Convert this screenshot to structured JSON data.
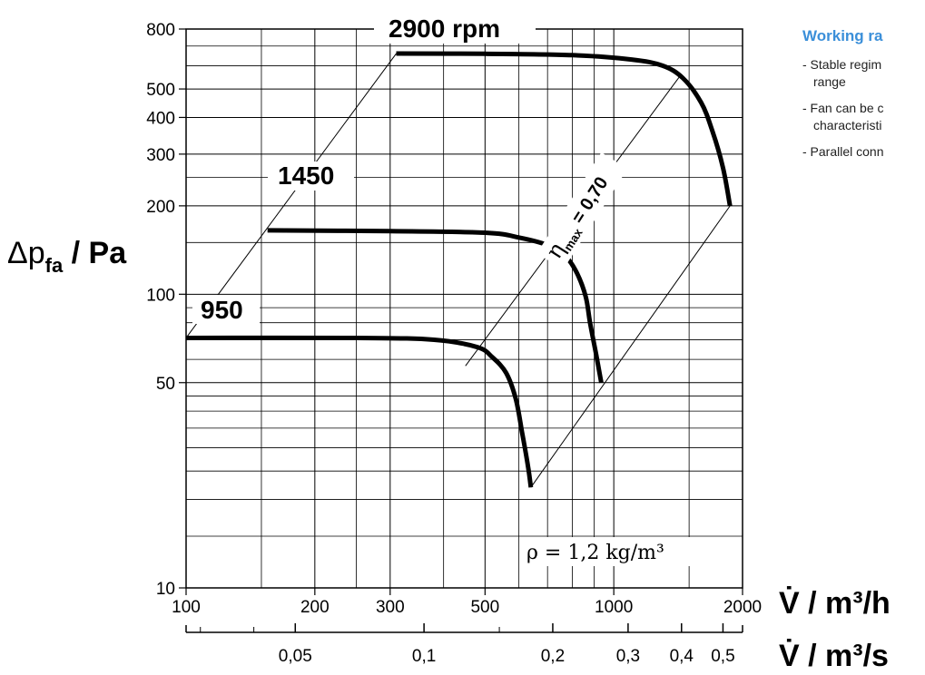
{
  "chart_data": {
    "type": "line",
    "x_scale": "log",
    "y_scale": "log",
    "xlim": [
      100,
      2000
    ],
    "ylim": [
      10,
      800
    ],
    "x_ticks": [
      {
        "v": 100,
        "label": "100"
      },
      {
        "v": 200,
        "label": "200"
      },
      {
        "v": 300,
        "label": "300"
      },
      {
        "v": 500,
        "label": "500"
      },
      {
        "v": 1000,
        "label": "1000"
      },
      {
        "v": 2000,
        "label": "2000"
      }
    ],
    "y_ticks": [
      {
        "v": 10,
        "label": "10"
      },
      {
        "v": 50,
        "label": "50"
      },
      {
        "v": 100,
        "label": "100"
      },
      {
        "v": 200,
        "label": "200"
      },
      {
        "v": 300,
        "label": "300"
      },
      {
        "v": 400,
        "label": "400"
      },
      {
        "v": 500,
        "label": "500"
      },
      {
        "v": 800,
        "label": "800"
      }
    ],
    "x_minor_lines": [
      150,
      250,
      400,
      600,
      700,
      800,
      900,
      1500
    ],
    "y_minor_lines": [
      15,
      20,
      25,
      30,
      35,
      40,
      45,
      60,
      70,
      80,
      90,
      150,
      250,
      600,
      700
    ],
    "x2_ticks": [
      {
        "v": 0.05,
        "label": "0,05"
      },
      {
        "v": 0.1,
        "label": "0,1"
      },
      {
        "v": 0.2,
        "label": "0,2"
      },
      {
        "v": 0.3,
        "label": "0,3"
      },
      {
        "v": 0.4,
        "label": "0,4"
      },
      {
        "v": 0.5,
        "label": "0,5"
      }
    ],
    "x2_minor": [
      0.03,
      0.04,
      0.15
    ],
    "series": [
      {
        "name": "2900 rpm",
        "points": [
          [
            310,
            660
          ],
          [
            500,
            659
          ],
          [
            800,
            652
          ],
          [
            1100,
            630
          ],
          [
            1300,
            600
          ],
          [
            1450,
            545
          ],
          [
            1600,
            450
          ],
          [
            1700,
            360
          ],
          [
            1800,
            270
          ],
          [
            1870,
            200
          ]
        ]
      },
      {
        "name": "1450",
        "points": [
          [
            155,
            165
          ],
          [
            300,
            164
          ],
          [
            500,
            162
          ],
          [
            600,
            156
          ],
          [
            700,
            147
          ],
          [
            770,
            135
          ],
          [
            820,
            118
          ],
          [
            860,
            98
          ],
          [
            880,
            80
          ],
          [
            910,
            62
          ],
          [
            935,
            50
          ]
        ]
      },
      {
        "name": "950",
        "points": [
          [
            100,
            71
          ],
          [
            250,
            71
          ],
          [
            380,
            70
          ],
          [
            480,
            66
          ],
          [
            520,
            61
          ],
          [
            560,
            54
          ],
          [
            590,
            44
          ],
          [
            610,
            34
          ],
          [
            630,
            26
          ],
          [
            640,
            22
          ]
        ]
      }
    ],
    "guide_lines": [
      [
        [
          100,
          71
        ],
        [
          310,
          660
        ]
      ],
      [
        [
          640,
          22
        ],
        [
          1870,
          200
        ]
      ],
      [
        [
          450,
          57
        ],
        [
          1430,
          555
        ]
      ]
    ],
    "annotations": {
      "label_2900": "2900 rpm",
      "label_1450": "1450",
      "label_950": "950",
      "eta_symbol": "η",
      "eta_sub": "max",
      "eta_value": " = 0,70",
      "rho": "ρ = 1,2 kg/m³"
    },
    "ylabel": {
      "prefix": "Δp",
      "sub": "fa",
      "suffix": " / Pa"
    },
    "xlabel": "V̇ / m³/h",
    "x2label": "V̇ / m³/s"
  },
  "side_panel": {
    "title": "Working ra",
    "notes": [
      "- Stable regim",
      "  range",
      "- Fan can be c",
      "  characteristi",
      "- Parallel conn"
    ]
  }
}
